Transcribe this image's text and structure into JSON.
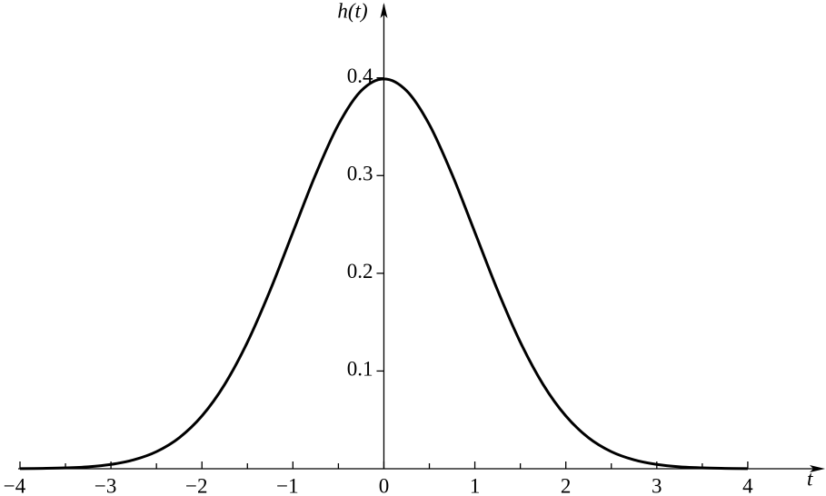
{
  "chart_data": {
    "type": "line",
    "x_label": "t",
    "y_label": "h(t)",
    "x": [
      -4,
      -3.75,
      -3.5,
      -3.25,
      -3,
      -2.75,
      -2.5,
      -2.25,
      -2,
      -1.75,
      -1.5,
      -1.25,
      -1,
      -0.75,
      -0.5,
      -0.25,
      0,
      0.25,
      0.5,
      0.75,
      1,
      1.25,
      1.5,
      1.75,
      2,
      2.25,
      2.5,
      2.75,
      3,
      3.25,
      3.5,
      3.75,
      4
    ],
    "series": [
      {
        "color": "#000000",
        "values": [
          0.0001,
          0.0004,
          0.0009,
          0.002,
          0.0044,
          0.0091,
          0.0175,
          0.0317,
          0.054,
          0.0863,
          0.1295,
          0.1826,
          0.242,
          0.3011,
          0.3521,
          0.3867,
          0.3989,
          0.3867,
          0.3521,
          0.3011,
          0.242,
          0.1826,
          0.1295,
          0.0863,
          0.054,
          0.0317,
          0.0175,
          0.0091,
          0.0044,
          0.002,
          0.0009,
          0.0004,
          0.0001
        ]
      }
    ],
    "xlim": [
      -4,
      4.8
    ],
    "ylim": [
      0,
      0.475
    ],
    "xticks": [
      {
        "value": -4,
        "label": "−4"
      },
      {
        "value": -3,
        "label": "−3"
      },
      {
        "value": -2,
        "label": "−2"
      },
      {
        "value": -1,
        "label": "−1"
      },
      0,
      1,
      2,
      3,
      4
    ],
    "xminor_ticks": [
      -3.5,
      -2.5,
      -1.5,
      -0.5,
      0.5,
      1.5,
      2.5,
      3.5
    ],
    "yticks": [
      0.1,
      0.2,
      0.3,
      0.4
    ]
  }
}
